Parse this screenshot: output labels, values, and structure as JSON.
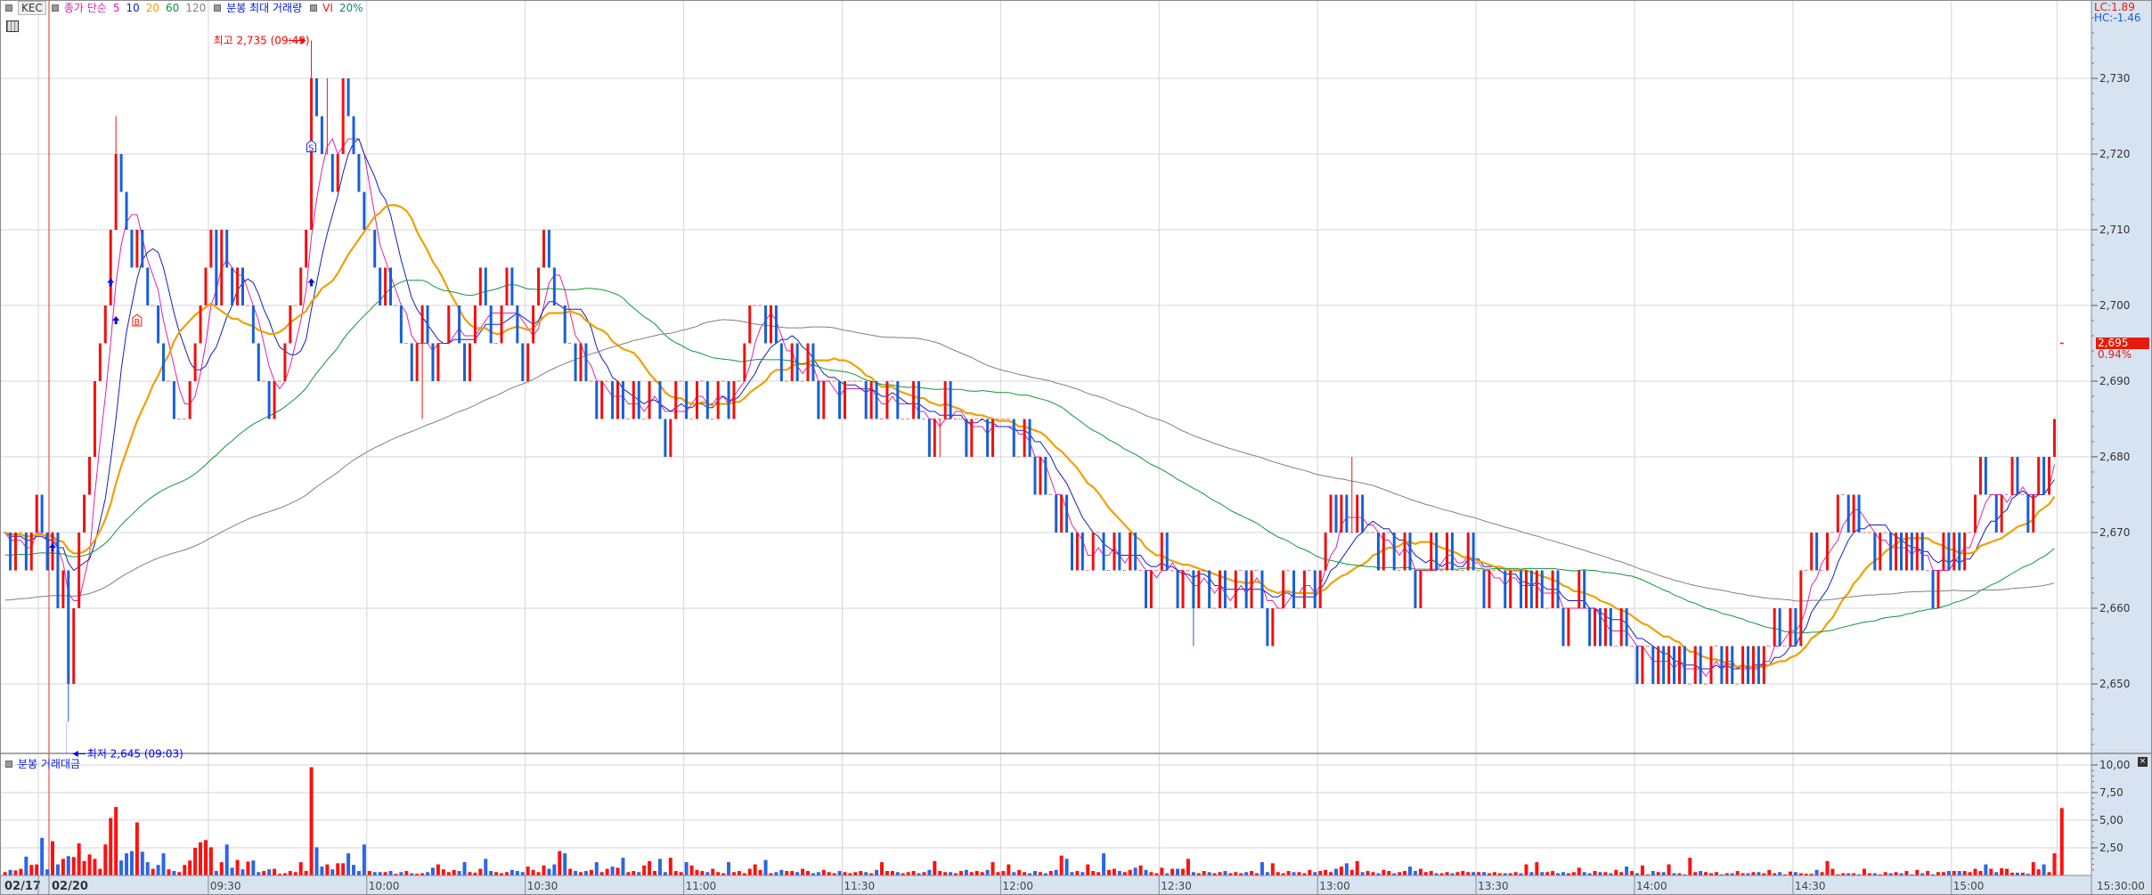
{
  "header": {
    "symbol": "KEC",
    "ma_label": "종가 단순",
    "ma_periods_labels": [
      "5",
      "10",
      "20",
      "60",
      "120"
    ],
    "volume_max_label": "분봉 최대 거래량",
    "vi_label": "VI",
    "vi_value": "20%"
  },
  "right_info": {
    "lc": "LC:1.89",
    "hc": "HC:-1.46",
    "current_price": "2,695",
    "change_pct": "0.94%"
  },
  "volume_panel": {
    "title": "분봉 거래대금",
    "close_icon": "close-icon"
  },
  "colors": {
    "up": "#f01010",
    "down": "#1660d8",
    "grid": "#d6d6d6",
    "axis_bg": "#d7e3f1",
    "day_divider": "#e03020"
  },
  "chart_data": {
    "type": "candlestick",
    "title": "",
    "price_axis": {
      "range": [
        2641,
        2739
      ],
      "ticks": [
        2650,
        2660,
        2670,
        2680,
        2690,
        2700,
        2710,
        2720,
        2730
      ],
      "tick_labels": [
        "2,650",
        "2,660",
        "2,670",
        "2,680",
        "2,690",
        "2,700",
        "2,710",
        "2,720",
        "2,730"
      ]
    },
    "time_axis": {
      "date_labels": [
        "02/17",
        "02/20"
      ],
      "tick_labels": [
        "09:30",
        "10:00",
        "10:30",
        "11:00",
        "11:30",
        "12:00",
        "12:30",
        "13:00",
        "13:30",
        "14:00",
        "14:30",
        "15:00"
      ],
      "end_label": "15:30:00"
    },
    "prev_session": {
      "date": "02/17",
      "closes": [
        2670,
        2665,
        2670,
        2670,
        2665,
        2670,
        2675,
        2670,
        2665
      ]
    },
    "session": {
      "date": "02/20",
      "start": "09:00",
      "interval_min": 1,
      "closes": [
        2670,
        2660,
        2665,
        2650,
        2660,
        2670,
        2675,
        2680,
        2690,
        2695,
        2700,
        2710,
        2720,
        2715,
        2710,
        2705,
        2710,
        2705,
        2700,
        2700,
        2695,
        2690,
        2690,
        2685,
        2685,
        2685,
        2690,
        2695,
        2700,
        2705,
        2710,
        2700,
        2710,
        2705,
        2700,
        2705,
        2700,
        2700,
        2695,
        2690,
        2690,
        2685,
        2690,
        2690,
        2695,
        2700,
        2700,
        2705,
        2710,
        2730,
        2725,
        2720,
        2720,
        2715,
        2720,
        2730,
        2725,
        2720,
        2715,
        2710,
        2710,
        2705,
        2700,
        2705,
        2700,
        2700,
        2695,
        2695,
        2690,
        2695,
        2700,
        2695,
        2690,
        2695,
        2695,
        2700,
        2700,
        2695,
        2690,
        2695,
        2700,
        2705,
        2700,
        2695,
        2695,
        2700,
        2705,
        2700,
        2695,
        2690,
        2695,
        2700,
        2705,
        2710,
        2705,
        2700,
        2700,
        2695,
        2695,
        2690,
        2695,
        2690,
        2690,
        2685,
        2690,
        2690,
        2685,
        2690,
        2685,
        2685,
        2690,
        2685,
        2685,
        2690,
        2690,
        2685,
        2680,
        2685,
        2690,
        2690,
        2685,
        2685,
        2690,
        2690,
        2685,
        2685,
        2690,
        2690,
        2685,
        2690,
        2690,
        2695,
        2700,
        2700,
        2700,
        2695,
        2700,
        2695,
        2690,
        2690,
        2695,
        2690,
        2690,
        2695,
        2690,
        2685,
        2690,
        2690,
        2690,
        2685,
        2690,
        2690,
        2690,
        2690,
        2685,
        2690,
        2685,
        2685,
        2690,
        2690,
        2685,
        2685,
        2685,
        2690,
        2685,
        2685,
        2680,
        2685,
        2685,
        2690,
        2685,
        2685,
        2685,
        2680,
        2685,
        2685,
        2685,
        2680,
        2685,
        2685,
        2685,
        2685,
        2680,
        2680,
        2685,
        2680,
        2675,
        2680,
        2675,
        2675,
        2670,
        2675,
        2670,
        2665,
        2670,
        2665,
        2665,
        2670,
        2670,
        2665,
        2665,
        2670,
        2665,
        2665,
        2670,
        2665,
        2665,
        2660,
        2665,
        2665,
        2670,
        2665,
        2665,
        2660,
        2665,
        2665,
        2660,
        2665,
        2665,
        2660,
        2660,
        2665,
        2660,
        2660,
        2665,
        2665,
        2660,
        2665,
        2665,
        2660,
        2655,
        2660,
        2660,
        2665,
        2665,
        2660,
        2660,
        2665,
        2665,
        2660,
        2665,
        2670,
        2675,
        2670,
        2675,
        2670,
        2670,
        2675,
        2670,
        2670,
        2670,
        2665,
        2670,
        2670,
        2665,
        2665,
        2670,
        2665,
        2660,
        2665,
        2665,
        2670,
        2665,
        2665,
        2670,
        2665,
        2665,
        2665,
        2670,
        2665,
        2665,
        2660,
        2665,
        2665,
        2665,
        2660,
        2665,
        2665,
        2660,
        2665,
        2660,
        2665,
        2660,
        2660,
        2665,
        2660,
        2655,
        2660,
        2660,
        2665,
        2660,
        2655,
        2660,
        2655,
        2660,
        2655,
        2655,
        2660,
        2655,
        2655,
        2650,
        2655,
        2655,
        2650,
        2655,
        2650,
        2655,
        2650,
        2655,
        2650,
        2650,
        2655,
        2650,
        2650,
        2655,
        2655,
        2650,
        2655,
        2650,
        2650,
        2655,
        2650,
        2655,
        2650,
        2655,
        2655,
        2660,
        2655,
        2655,
        2660,
        2655,
        2665,
        2665,
        2670,
        2665,
        2665,
        2670,
        2670,
        2675,
        2675,
        2670,
        2675,
        2670,
        2670,
        2670,
        2665,
        2670,
        2670,
        2665,
        2670,
        2665,
        2670,
        2665,
        2670,
        2665,
        2665,
        2660,
        2665,
        2670,
        2665,
        2670,
        2665,
        2670,
        2670,
        2675,
        2680,
        2675,
        2675,
        2670,
        2675,
        2675,
        2680,
        2675,
        2675,
        2670,
        2675,
        2680,
        2675,
        2680,
        2685
      ]
    },
    "closing_auction": {
      "time": "15:30",
      "price": 2695
    },
    "wick_extremes": {
      "09:03": {
        "low": 2645
      },
      "09:12": {
        "high": 2725
      },
      "09:13": {
        "high": 2720
      },
      "09:23": {
        "low": 2685
      },
      "09:41": {
        "low": 2685
      },
      "09:49": {
        "high": 2735
      },
      "09:52": {
        "high": 2730
      },
      "09:56": {
        "high": 2730
      },
      "10:10": {
        "low": 2685
      },
      "11:48": {
        "low": 2680
      },
      "12:36": {
        "low": 2655
      },
      "13:06": {
        "high": 2680
      }
    },
    "moving_averages": [
      {
        "period": 5,
        "color": "#e020b0",
        "seed": null
      },
      {
        "period": 10,
        "color": "#1020c0",
        "seed": null
      },
      {
        "period": 20,
        "color": "#f0a000",
        "seed": null
      },
      {
        "period": 60,
        "color": "#10963a",
        "seed": 2667
      },
      {
        "period": 120,
        "color": "#808080",
        "seed": 2661
      }
    ],
    "annotations": {
      "high": {
        "text": "최고 2,735 (09:49)",
        "time": "09:49",
        "price": 2735,
        "color": "#ff0000"
      },
      "low": {
        "text": "최저 2,645 (09:03)",
        "time": "09:03",
        "price": 2645,
        "color": "#0000ff"
      }
    },
    "signals": [
      {
        "type": "up-arrow",
        "time": "09:00",
        "price": 2668
      },
      {
        "type": "up-arrow",
        "time": "09:11",
        "price": 2703
      },
      {
        "type": "up-arrow",
        "time": "09:12",
        "price": 2698
      },
      {
        "type": "up-arrow",
        "time": "09:49",
        "price": 2703
      },
      {
        "type": "buy",
        "label": "B",
        "time": "09:16",
        "price": 2698
      },
      {
        "type": "sell",
        "label": "S",
        "time": "09:49",
        "price": 2721
      }
    ],
    "volume": {
      "title": "분봉 거래대금",
      "ticks": [
        2.5,
        5,
        7.5,
        10
      ],
      "tick_labels": [
        "2,50",
        "5,00",
        "7,50",
        "10,00"
      ],
      "range": [
        0,
        10.2
      ],
      "prev_session": [
        0.3,
        0.5,
        0.45,
        0.6,
        1.7,
        0.95,
        1.0,
        3.4,
        0.55
      ],
      "session": [
        3.1,
        1.0,
        1.5,
        1.75,
        1.67,
        2.9,
        1.3,
        1.9,
        1.5,
        0.6,
        2.8,
        5.2,
        6.2,
        1.35,
        2.0,
        2.2,
        4.8,
        2.15,
        1.2,
        0.6,
        0.95,
        2.0,
        0.55,
        0.4,
        0.3,
        0.95,
        1.35,
        2.5,
        3.0,
        3.2,
        2.55,
        0.4,
        1.2,
        2.8,
        0.7,
        1.4,
        0.55,
        1.25,
        1.35,
        0.3,
        0.4,
        0.55,
        0.6,
        0.15,
        0.2,
        0.4,
        0.3,
        1.2,
        0.4,
        9.8,
        2.55,
        0.8,
        1.0,
        0.55,
        1.1,
        1.1,
        2.0,
        0.95,
        0.4,
        2.8,
        0.4,
        0.3,
        0.3,
        0.3,
        0.4,
        0.15,
        0.3,
        0.4,
        0.2,
        0.15,
        0.2,
        0.3,
        0.7,
        1.0,
        0.55,
        0.3,
        0.5,
        0.4,
        1.2,
        0.3,
        0.25,
        0.6,
        1.5,
        0.4,
        0.3,
        0.2,
        0.3,
        0.5,
        0.4,
        0.3,
        0.8,
        0.5,
        0.3,
        0.9,
        0.6,
        1.0,
        2.2,
        2.0,
        0.6,
        0.4,
        0.3,
        0.4,
        0.5,
        1.2,
        0.3,
        0.6,
        0.8,
        0.7,
        1.6,
        0.3,
        0.4,
        0.3,
        0.9,
        1.3,
        0.4,
        1.5,
        0.3,
        1.6,
        0.4,
        0.3,
        1.2,
        0.9,
        0.5,
        0.4,
        0.3,
        0.6,
        0.3,
        0.2,
        1.2,
        0.3,
        0.4,
        0.2,
        0.6,
        1.0,
        0.5,
        1.4,
        0.2,
        0.3,
        0.5,
        0.4,
        0.4,
        0.3,
        0.6,
        0.4,
        0.2,
        0.3,
        0.5,
        0.3,
        0.2,
        0.4,
        0.3,
        0.2,
        0.3,
        0.4,
        0.3,
        0.2,
        0.5,
        1.2,
        0.4,
        0.4,
        0.3,
        0.2,
        0.3,
        0.4,
        0.2,
        0.3,
        0.5,
        1.3,
        0.4,
        0.3,
        0.3,
        0.2,
        0.4,
        0.5,
        0.3,
        0.4,
        0.3,
        0.5,
        1.2,
        0.3,
        0.4,
        1.0,
        0.3,
        0.5,
        0.3,
        0.2,
        0.4,
        0.3,
        0.2,
        0.4,
        0.5,
        1.8,
        1.5,
        0.3,
        0.4,
        0.3,
        1.0,
        0.4,
        0.3,
        2.0,
        0.5,
        0.6,
        0.4,
        0.3,
        0.5,
        0.7,
        0.9,
        0.5,
        0.3,
        0.2,
        0.7,
        0.2,
        0.6,
        0.6,
        0.6,
        1.5,
        0.3,
        0.2,
        0.4,
        0.3,
        0.2,
        0.3,
        0.4,
        0.2,
        0.3,
        0.2,
        0.3,
        0.4,
        0.2,
        1.2,
        0.3,
        1.1,
        0.3,
        0.2,
        0.4,
        0.3,
        0.3,
        0.2,
        0.5,
        0.3,
        0.4,
        0.5,
        0.3,
        0.6,
        0.8,
        1.1,
        0.5,
        1.3,
        0.3,
        0.4,
        0.3,
        0.2,
        0.5,
        0.4,
        0.2,
        0.3,
        0.4,
        0.8,
        0.4,
        0.6,
        0.3,
        0.4,
        0.2,
        0.2,
        0.3,
        0.2,
        0.3,
        0.4,
        0.3,
        0.3,
        0.3,
        0.3,
        0.2,
        0.3,
        0.2,
        0.2,
        0.2,
        0.3,
        0.2,
        1.0,
        0.3,
        1.2,
        0.3,
        0.3,
        0.4,
        0.2,
        0.3,
        0.2,
        0.3,
        0.7,
        0.3,
        0.2,
        0.4,
        0.3,
        0.3,
        0.2,
        0.5,
        0.3,
        0.8,
        0.4,
        0.2,
        0.9,
        0.1,
        0.4,
        0.3,
        0.3,
        1.0,
        0.2,
        0.2,
        0.1,
        1.6,
        0.3,
        0.4,
        0.3,
        0.2,
        0.3,
        0.1,
        0.2,
        0.2,
        0.4,
        0.2,
        0.2,
        0.3,
        0.3,
        0.2,
        0.5,
        0.2,
        0.3,
        0.1,
        0.35,
        0.3,
        0.2,
        0.15,
        0.15,
        0.5,
        0.3,
        1.3,
        0.6,
        0.1,
        0.2,
        0.2,
        0.2,
        0.1,
        0.6,
        0.2,
        0.2,
        0.1,
        0.3,
        0.2,
        0.3,
        0.2,
        0.4,
        0.1,
        0.5,
        0.2,
        0.4,
        0.1,
        0.3,
        0.3,
        0.4,
        0.4,
        0.4,
        0.4,
        0.3,
        0.6,
        0.4,
        1.0,
        0.6,
        0.3,
        0.65,
        0.6,
        0.25,
        0.25,
        0.25,
        0.15,
        1.2,
        0.55,
        1.0,
        0.3,
        2.0
      ],
      "closing_auction": 6.1
    }
  }
}
